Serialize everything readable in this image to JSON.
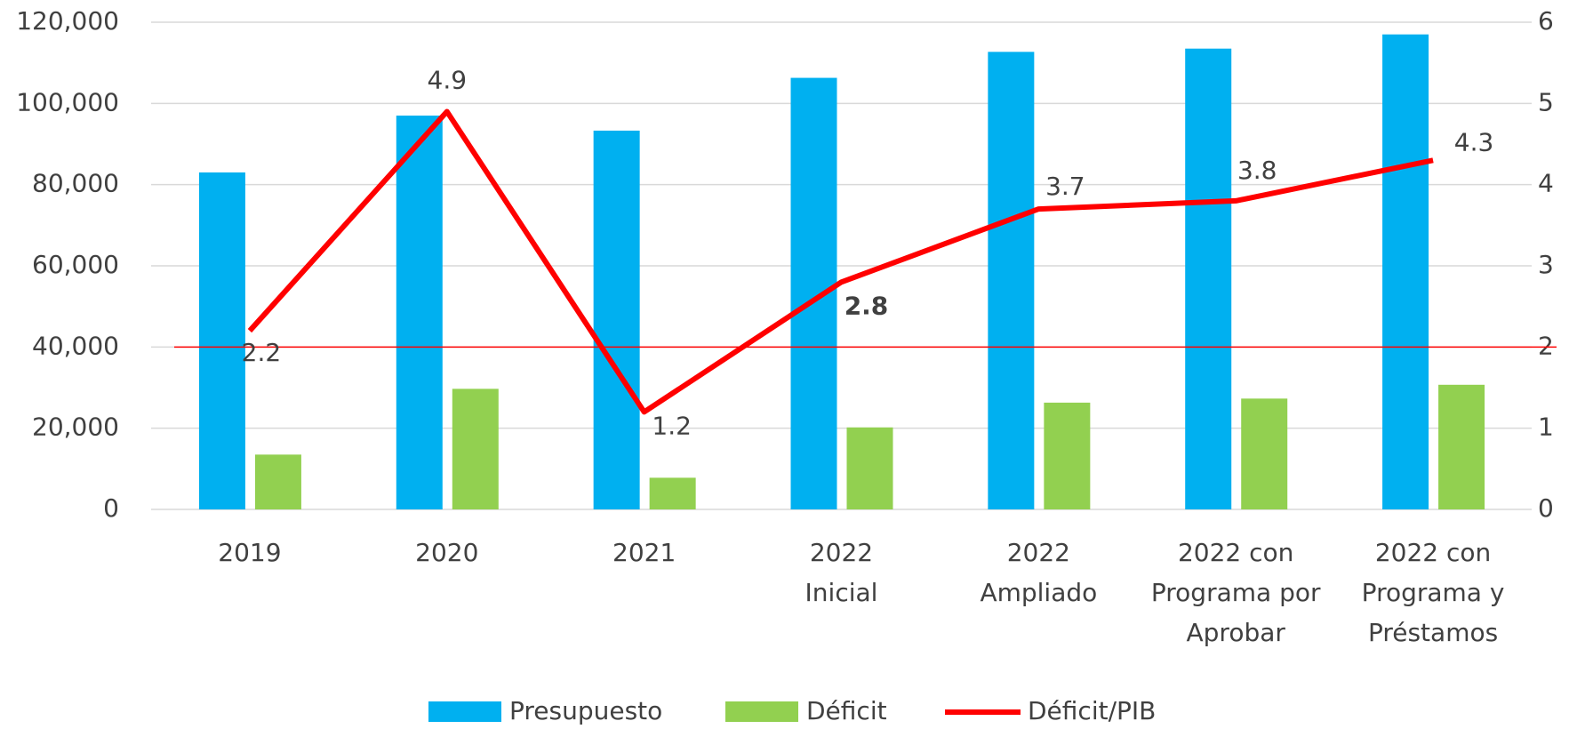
{
  "chart_data": {
    "type": "bar-line",
    "categories": [
      "2019",
      "2020",
      "2021",
      "2022\nInicial",
      "2022\nAmpliado",
      "2022 con\nPrograma por\nAprobar",
      "2022 con\nPrograma y\nPréstamos"
    ],
    "series": [
      {
        "name": "Presupuesto",
        "color": "#00b0f0",
        "type": "bar",
        "values": [
          83000,
          97000,
          93300,
          106300,
          112700,
          113500,
          117000
        ]
      },
      {
        "name": "Déficit",
        "color": "#92d050",
        "type": "bar",
        "values": [
          13500,
          29700,
          7800,
          20200,
          26300,
          27300,
          30700
        ]
      },
      {
        "name": "Déficit/PIB",
        "color": "#ff0000",
        "type": "line",
        "axis": "y2",
        "values": [
          2.2,
          4.9,
          1.2,
          2.8,
          3.7,
          3.8,
          4.3
        ]
      }
    ],
    "ylim": [
      0,
      120000
    ],
    "yticks": [
      0,
      {
        "value": 20000,
        "label": "20,000"
      },
      {
        "value": 40000,
        "label": "40,000"
      },
      {
        "value": 60000,
        "label": "60,000"
      },
      {
        "value": 80000,
        "label": "80,000"
      },
      {
        "value": 100000,
        "label": "100,000"
      },
      {
        "value": 120000,
        "label": "120,000"
      }
    ],
    "y2lim": [
      0,
      6
    ],
    "y2ticks": [
      0,
      1,
      2,
      3,
      4,
      5,
      6
    ],
    "reference_line_y2": 2,
    "grid": true,
    "legend": "bottom"
  }
}
